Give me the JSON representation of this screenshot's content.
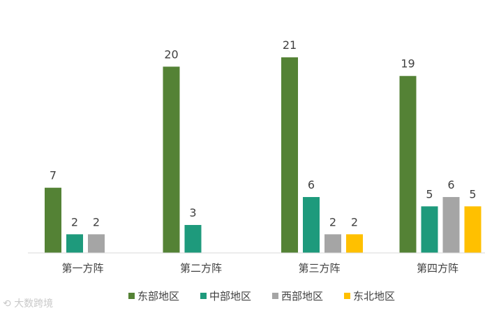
{
  "chart_data": {
    "type": "bar",
    "categories": [
      "第一方阵",
      "第二方阵",
      "第三方阵",
      "第四方阵"
    ],
    "series": [
      {
        "name": "东部地区",
        "color": "#548235",
        "values": [
          7,
          20,
          21,
          19
        ]
      },
      {
        "name": "中部地区",
        "color": "#1e9a7c",
        "values": [
          2,
          3,
          6,
          5
        ]
      },
      {
        "name": "西部地区",
        "color": "#a5a5a5",
        "values": [
          2,
          null,
          2,
          6
        ]
      },
      {
        "name": "东北地区",
        "color": "#ffc000",
        "values": [
          null,
          null,
          2,
          5
        ]
      }
    ],
    "ylim": [
      0,
      21
    ],
    "grid": false,
    "legend_position": "bottom"
  },
  "watermark": "大数跨境",
  "watermark_icon": "logo-icon"
}
